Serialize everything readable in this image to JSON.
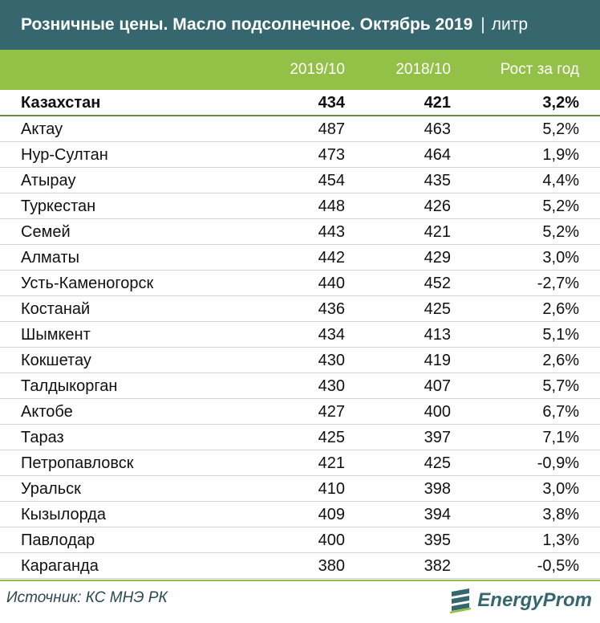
{
  "header": {
    "title": "Розничные цены. Масло подсолнечное. Октябрь 2019",
    "separator": "|",
    "unit": "литр"
  },
  "chart_data": {
    "type": "table",
    "columns": [
      "",
      "2019/10",
      "2018/10",
      "Рост за год"
    ],
    "rows": [
      {
        "region": "Казахстан",
        "v2019": "434",
        "v2018": "421",
        "growth": "3,2%",
        "bold": true
      },
      {
        "region": "Актау",
        "v2019": "487",
        "v2018": "463",
        "growth": "5,2%"
      },
      {
        "region": "Нур-Султан",
        "v2019": "473",
        "v2018": "464",
        "growth": "1,9%"
      },
      {
        "region": "Атырау",
        "v2019": "454",
        "v2018": "435",
        "growth": "4,4%"
      },
      {
        "region": "Туркестан",
        "v2019": "448",
        "v2018": "426",
        "growth": "5,2%"
      },
      {
        "region": "Семей",
        "v2019": "443",
        "v2018": "421",
        "growth": "5,2%"
      },
      {
        "region": "Алматы",
        "v2019": "442",
        "v2018": "429",
        "growth": "3,0%"
      },
      {
        "region": "Усть-Каменогорск",
        "v2019": "440",
        "v2018": "452",
        "growth": "-2,7%"
      },
      {
        "region": "Костанай",
        "v2019": "436",
        "v2018": "425",
        "growth": "2,6%"
      },
      {
        "region": "Шымкент",
        "v2019": "434",
        "v2018": "413",
        "growth": "5,1%"
      },
      {
        "region": "Кокшетау",
        "v2019": "430",
        "v2018": "419",
        "growth": "2,6%"
      },
      {
        "region": "Талдыкорган",
        "v2019": "430",
        "v2018": "407",
        "growth": "5,7%"
      },
      {
        "region": "Актобе",
        "v2019": "427",
        "v2018": "400",
        "growth": "6,7%"
      },
      {
        "region": "Тараз",
        "v2019": "425",
        "v2018": "397",
        "growth": "7,1%"
      },
      {
        "region": "Петропавловск",
        "v2019": "421",
        "v2018": "425",
        "growth": "-0,9%"
      },
      {
        "region": "Уральск",
        "v2019": "410",
        "v2018": "398",
        "growth": "3,0%"
      },
      {
        "region": "Кызылорда",
        "v2019": "409",
        "v2018": "394",
        "growth": "3,8%"
      },
      {
        "region": "Павлодар",
        "v2019": "400",
        "v2018": "395",
        "growth": "1,3%"
      },
      {
        "region": "Караганда",
        "v2019": "380",
        "v2018": "382",
        "growth": "-0,5%"
      }
    ]
  },
  "footer": {
    "source": "Источник: КС МНЭ РК",
    "logo_text": "EnergyProm",
    "logo_icon": "energyprom-logo-icon"
  },
  "colors": {
    "title_bg": "#36666e",
    "header_bg": "#93c046",
    "accent": "#6b8e3a"
  }
}
